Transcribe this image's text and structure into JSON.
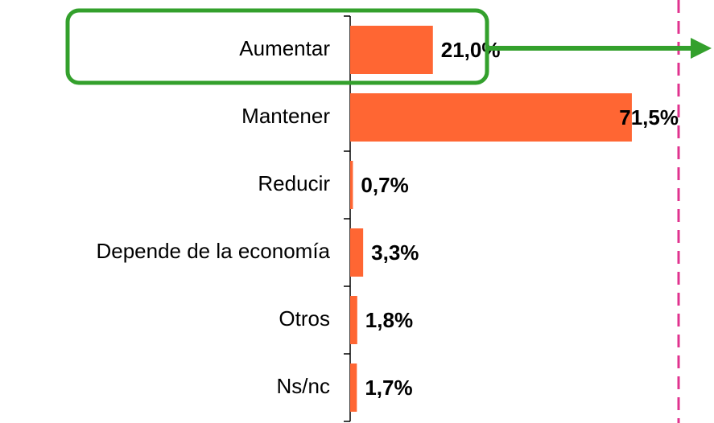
{
  "chart_data": {
    "type": "bar",
    "orientation": "horizontal",
    "categories": [
      "Aumentar",
      "Mantener",
      "Reducir",
      "Depende de la economía",
      "Otros",
      "Ns/nc"
    ],
    "values": [
      21.0,
      71.5,
      0.7,
      3.3,
      1.8,
      1.7
    ],
    "value_labels": [
      "21,0%",
      "71,5%",
      "0,7%",
      "3,3%",
      "1,8%",
      "1,7%"
    ],
    "color": "#ff6633",
    "xlim": [
      0,
      85
    ]
  }
}
